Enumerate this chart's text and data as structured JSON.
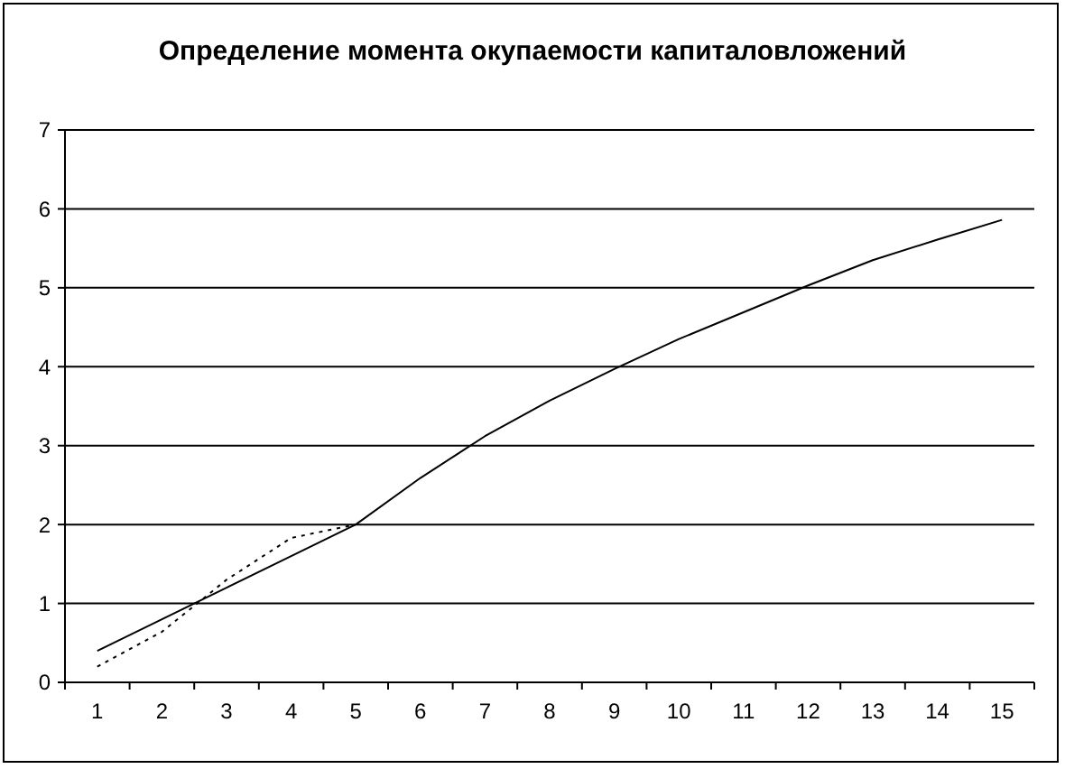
{
  "chart_data": {
    "type": "line",
    "title": "Определение момента окупаемости капиталовложений",
    "categories": [
      "1",
      "2",
      "3",
      "4",
      "5",
      "6",
      "7",
      "8",
      "9",
      "10",
      "11",
      "12",
      "13",
      "14",
      "15"
    ],
    "series": [
      {
        "color": "#000000",
        "line_style": "solid",
        "values": [
          0.4,
          0.8,
          1.2,
          1.6,
          2.0,
          2.59,
          3.12,
          3.57,
          3.97,
          4.35,
          4.69,
          5.03,
          5.35,
          5.61,
          5.86
        ]
      },
      {
        "color": "#000000",
        "line_style": "dotted",
        "values": [
          0.2,
          0.64,
          1.3,
          1.83,
          2.0,
          null,
          null,
          null,
          null,
          null,
          null,
          null,
          null,
          null,
          null
        ]
      }
    ],
    "ylim": [
      0,
      7
    ],
    "yticks": [
      0,
      1,
      2,
      3,
      4,
      5,
      6,
      7
    ],
    "grid": "y",
    "marker": "none"
  }
}
